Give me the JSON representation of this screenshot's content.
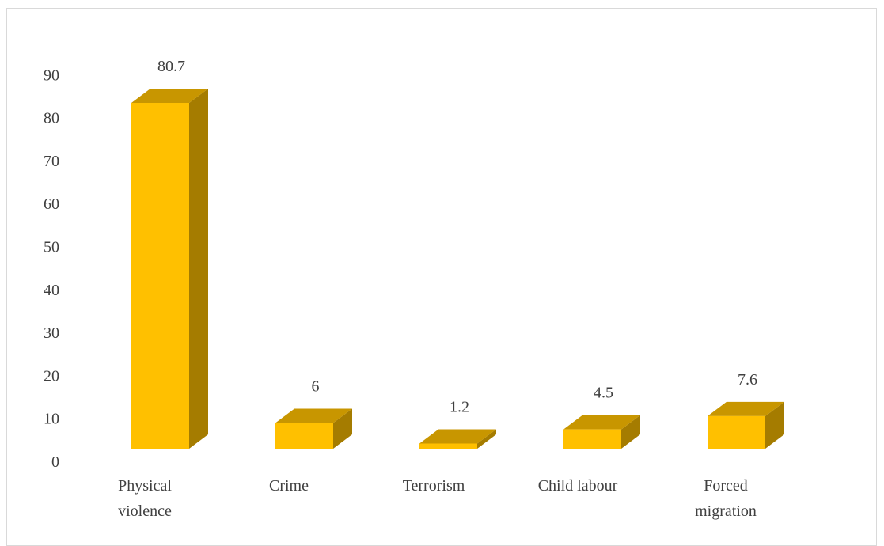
{
  "chart_data": {
    "type": "bar",
    "style": "3d-column",
    "categories": [
      [
        "Physical",
        "violence"
      ],
      [
        "Crime"
      ],
      [
        "Terrorism"
      ],
      [
        "Child labour"
      ],
      [
        "Forced",
        "migration"
      ]
    ],
    "values": [
      80.7,
      6,
      1.2,
      4.5,
      7.6
    ],
    "data_labels": [
      "80.7",
      "6",
      "1.2",
      "4.5",
      "7.6"
    ],
    "ylim": [
      0,
      90
    ],
    "yticks": [
      "0",
      "10",
      "20",
      "30",
      "40",
      "50",
      "60",
      "70",
      "80",
      "90"
    ],
    "title": "",
    "xlabel": "",
    "ylabel": "",
    "grid": false,
    "legend": "none",
    "colors": {
      "front": "#FFC000",
      "top": "#C89600",
      "side": "#A57C00"
    }
  }
}
